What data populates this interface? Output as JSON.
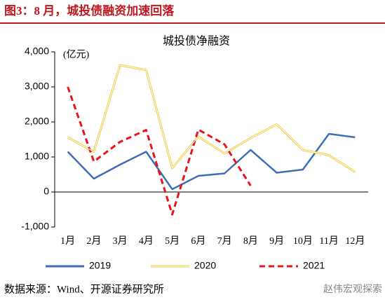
{
  "header": "图3：8 月，城投债融资加速回落",
  "source": "数据来源：Wind、开源证券研究所",
  "watermark": "赵伟宏观探索",
  "chart_data": {
    "type": "line",
    "title": "城投债净融资",
    "y_unit": "(亿元)",
    "categories": [
      "1月",
      "2月",
      "3月",
      "4月",
      "5月",
      "6月",
      "7月",
      "8月",
      "9月",
      "10月",
      "11月",
      "12月"
    ],
    "series": [
      {
        "name": "2019",
        "color": "#3d6fb6",
        "style": "solid",
        "values": [
          1150,
          380,
          780,
          1150,
          80,
          460,
          530,
          1200,
          550,
          640,
          1660,
          1560
        ]
      },
      {
        "name": "2020",
        "color": "#f0cf45",
        "style": "double",
        "values": [
          1560,
          1150,
          3620,
          3480,
          680,
          1580,
          1100,
          1540,
          1930,
          1200,
          1050,
          570
        ]
      },
      {
        "name": "2021",
        "color": "#e8141c",
        "style": "dashed",
        "values": [
          3000,
          870,
          1430,
          1770,
          -640,
          1780,
          1360,
          180,
          null,
          null,
          null,
          null
        ]
      }
    ],
    "ylim": [
      -1000,
      4000
    ],
    "yticks": [
      {
        "value": -1000,
        "label": "-1,000"
      },
      0,
      {
        "value": 1000,
        "label": "1,000"
      },
      {
        "value": 2000,
        "label": "2,000"
      },
      {
        "value": 3000,
        "label": "3,000"
      },
      {
        "value": 4000,
        "label": "4,000"
      }
    ],
    "legend": "bottom"
  }
}
